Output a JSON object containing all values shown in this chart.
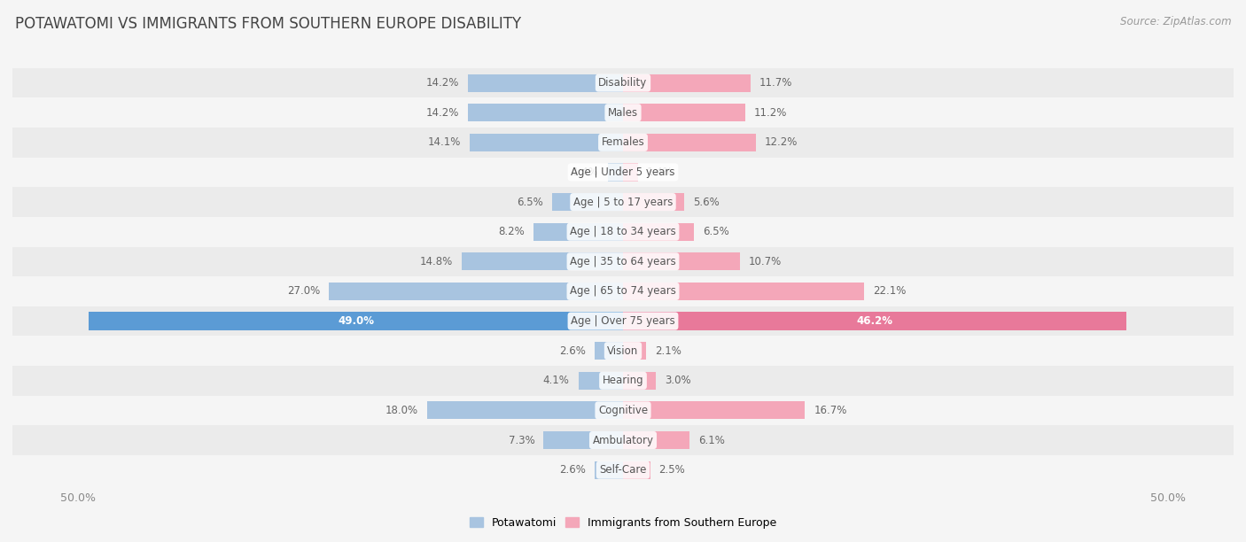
{
  "title": "POTAWATOMI VS IMMIGRANTS FROM SOUTHERN EUROPE DISABILITY",
  "source": "Source: ZipAtlas.com",
  "categories": [
    "Disability",
    "Males",
    "Females",
    "Age | Under 5 years",
    "Age | 5 to 17 years",
    "Age | 18 to 34 years",
    "Age | 35 to 64 years",
    "Age | 65 to 74 years",
    "Age | Over 75 years",
    "Vision",
    "Hearing",
    "Cognitive",
    "Ambulatory",
    "Self-Care"
  ],
  "potawatomi": [
    14.2,
    14.2,
    14.1,
    1.4,
    6.5,
    8.2,
    14.8,
    27.0,
    49.0,
    2.6,
    4.1,
    18.0,
    7.3,
    2.6
  ],
  "immigrants": [
    11.7,
    11.2,
    12.2,
    1.4,
    5.6,
    6.5,
    10.7,
    22.1,
    46.2,
    2.1,
    3.0,
    16.7,
    6.1,
    2.5
  ],
  "max_val": 50.0,
  "blue_color": "#a8c4e0",
  "pink_color": "#f4a7b9",
  "blue_dark": "#5b9bd5",
  "pink_dark": "#e8799a",
  "bar_height": 0.6,
  "bg_color": "#f5f5f5",
  "row_color_odd": "#ebebeb",
  "row_color_even": "#f5f5f5",
  "label_text_color": "#555555",
  "value_text_color": "#666666",
  "legend_blue": "Potawatomi",
  "legend_pink": "Immigrants from Southern Europe",
  "title_color": "#444444",
  "source_color": "#999999"
}
